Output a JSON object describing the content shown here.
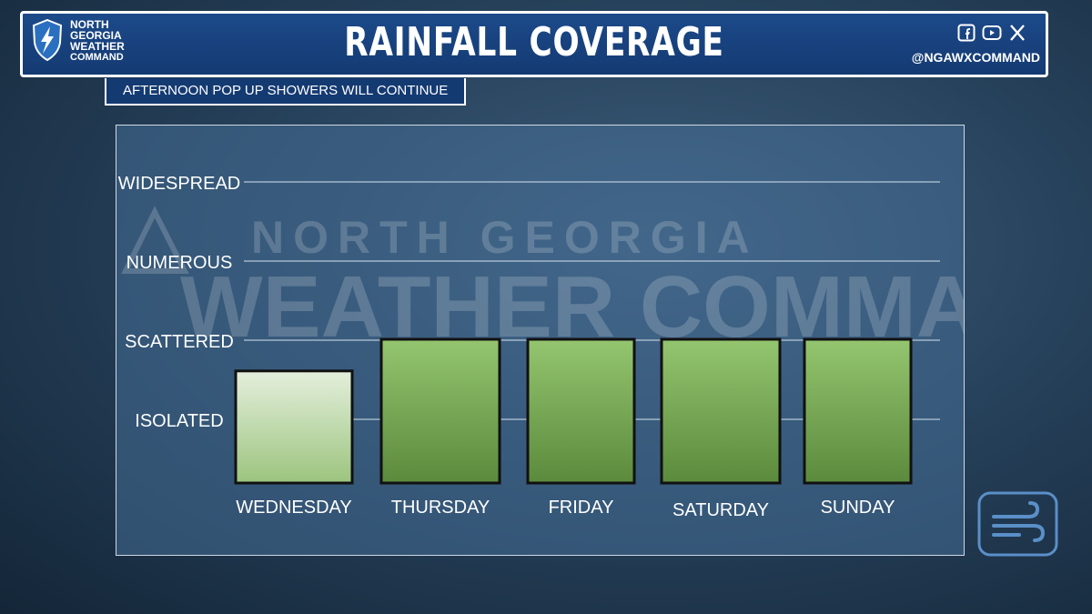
{
  "header": {
    "logo_lines": [
      "NORTH",
      "GEORGIA",
      "WEATHER",
      "COMMAND"
    ],
    "title": "RAINFALL COVERAGE",
    "social_icons": [
      "facebook-icon",
      "youtube-icon",
      "x-icon"
    ],
    "handle": "@NGAWXCOMMAND"
  },
  "subtitle": "AFTERNOON POP UP SHOWERS WILL CONTINUE",
  "watermark": {
    "line1": "NORTH GEORGIA",
    "line2": "WEATHER COMMAND"
  },
  "chart_data": {
    "type": "bar",
    "categories": [
      "WEDNESDAY",
      "THURSDAY",
      "FRIDAY",
      "SATURDAY",
      "SUNDAY"
    ],
    "values": [
      1.6,
      2.0,
      2.0,
      2.0,
      2.0
    ],
    "levels": [
      "ISOLATED",
      "SCATTERED",
      "NUMEROUS",
      "WIDESPREAD"
    ],
    "ylim": [
      0,
      4
    ],
    "grid": true,
    "colors": {
      "light_top": "#e4efdc",
      "light_bottom": "#9cc47e",
      "dark_top": "#94c56f",
      "dark_bottom": "#5b8a3c"
    }
  },
  "corner_icon": "wind-icon"
}
